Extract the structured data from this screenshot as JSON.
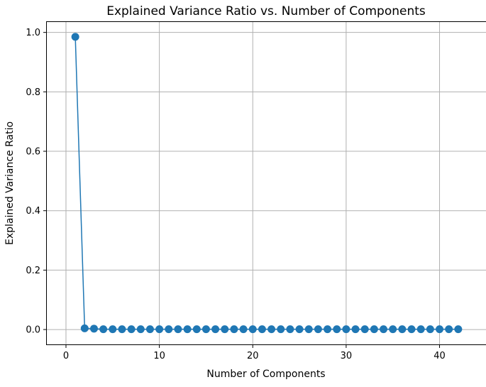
{
  "chart_data": {
    "type": "line",
    "title": "Explained Variance Ratio vs. Number of Components",
    "xlabel": "Number of Components",
    "ylabel": "Explained Variance Ratio",
    "xlim": [
      -2.05,
      45.05
    ],
    "ylim": [
      -0.05,
      1.035
    ],
    "xticks": [
      0,
      10,
      20,
      30,
      40
    ],
    "xtick_labels": [
      "0",
      "10",
      "20",
      "30",
      "40"
    ],
    "yticks": [
      0.0,
      0.2,
      0.4,
      0.6,
      0.8,
      1.0
    ],
    "ytick_labels": [
      "0.0",
      "0.2",
      "0.4",
      "0.6",
      "0.8",
      "1.0"
    ],
    "grid": true,
    "marker": "circle",
    "color": "#1f77b4",
    "series": [
      {
        "x": [
          1,
          2,
          3,
          4,
          5,
          6,
          7,
          8,
          9,
          10,
          11,
          12,
          13,
          14,
          15,
          16,
          17,
          18,
          19,
          20,
          21,
          22,
          23,
          24,
          25,
          26,
          27,
          28,
          29,
          30,
          31,
          32,
          33,
          34,
          35,
          36,
          37,
          38,
          39,
          40,
          41,
          42
        ],
        "values": [
          0.985,
          0.004,
          0.003,
          0.001,
          0.001,
          0.001,
          0.001,
          0.001,
          0.001,
          0.001,
          0.001,
          0.001,
          0.001,
          0.001,
          0.001,
          0.001,
          0.001,
          0.001,
          0.001,
          0.001,
          0.001,
          0.001,
          0.001,
          0.001,
          0.001,
          0.001,
          0.001,
          0.001,
          0.001,
          0.001,
          0.001,
          0.001,
          0.001,
          0.001,
          0.001,
          0.001,
          0.001,
          0.001,
          0.001,
          0.001,
          0.001,
          0.001
        ]
      }
    ]
  }
}
